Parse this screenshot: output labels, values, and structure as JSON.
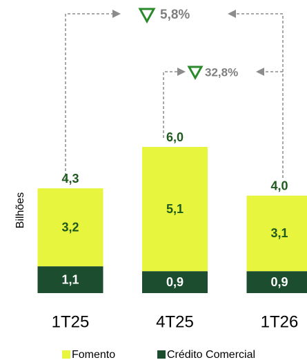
{
  "chart_data": {
    "type": "stacked_bar",
    "categories": [
      "1T25",
      "4T25",
      "1T26"
    ],
    "y_label": "Bilhões",
    "series": [
      {
        "name": "Crédito Comercial",
        "color": "#1b4d2e",
        "values": [
          1.1,
          0.9,
          0.9
        ],
        "value_labels": [
          "1,1",
          "0,9",
          "0,9"
        ]
      },
      {
        "name": "Fomento",
        "color": "#e8f53f",
        "values": [
          3.2,
          5.1,
          3.1
        ],
        "value_labels": [
          "3,2",
          "5,1",
          "3,1"
        ]
      }
    ],
    "totals": [
      4.3,
      6.0,
      4.0
    ],
    "total_labels": [
      "4,3",
      "6,0",
      "4,0"
    ],
    "annotations": [
      "5,8%",
      "32,8%"
    ]
  }
}
